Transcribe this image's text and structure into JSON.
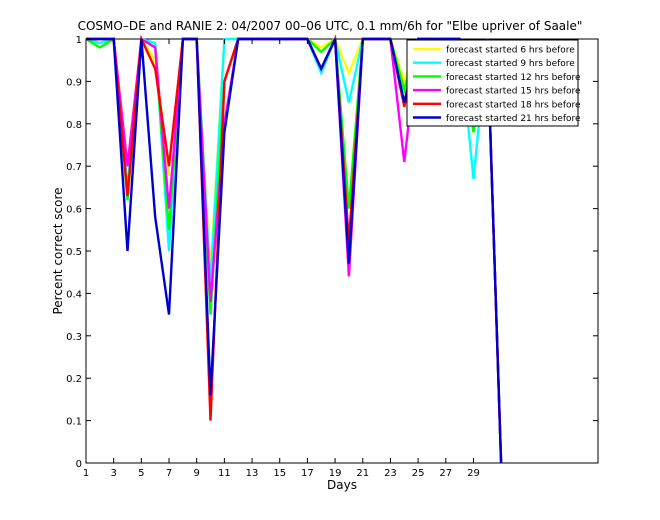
{
  "chart_data": {
    "type": "line",
    "title": "COSMO–DE and RANIE 2: 04/2007 00–06 UTC, 0.1 mm/6h for \"Elbe upriver of Saale\"",
    "xlabel": "Days",
    "ylabel": "Percent correct score",
    "xlim": [
      1,
      38
    ],
    "ylim": [
      0,
      1
    ],
    "xticks": [
      1,
      3,
      5,
      7,
      9,
      11,
      13,
      15,
      17,
      19,
      21,
      23,
      25,
      27,
      29
    ],
    "yticks": [
      0,
      0.1,
      0.2,
      0.3,
      0.4,
      0.5,
      0.6,
      0.7,
      0.8,
      0.9,
      1
    ],
    "ytick_labels": [
      "0",
      "0.1",
      "0.2",
      "0.3",
      "0.4",
      "0.5",
      "0.6",
      "0.7",
      "0.8",
      "0.9",
      "1"
    ],
    "legend_position": "top-right",
    "series": [
      {
        "name": "forecast started 6 hrs before",
        "color": "#ffff00",
        "points": [
          [
            1,
            1
          ],
          [
            2,
            0.99
          ],
          [
            3,
            1
          ],
          [
            4,
            0.7
          ],
          [
            5,
            1
          ],
          [
            6,
            0.95
          ],
          [
            7,
            0.68
          ],
          [
            7.5,
            0.68
          ],
          [
            8,
            1
          ],
          [
            9,
            1
          ],
          [
            10,
            0.45
          ],
          [
            11,
            1
          ],
          [
            12,
            1
          ],
          [
            13,
            1
          ],
          [
            17,
            1
          ],
          [
            18,
            0.98
          ],
          [
            19,
            1
          ],
          [
            20,
            0.92
          ],
          [
            21,
            1
          ],
          [
            23,
            1
          ],
          [
            24,
            0.9
          ],
          [
            25,
            1
          ],
          [
            28,
            1
          ],
          [
            29,
            0.92
          ],
          [
            30,
            1
          ],
          [
            31,
            0
          ]
        ]
      },
      {
        "name": "forecast started 9 hrs before",
        "color": "#00ffff",
        "points": [
          [
            1,
            1
          ],
          [
            2,
            0.99
          ],
          [
            3,
            1
          ],
          [
            4,
            0.65
          ],
          [
            5,
            1
          ],
          [
            6,
            0.99
          ],
          [
            7,
            0.5
          ],
          [
            8,
            1
          ],
          [
            9,
            1
          ],
          [
            10,
            0.42
          ],
          [
            11,
            1
          ],
          [
            12,
            1
          ],
          [
            13,
            1
          ],
          [
            17,
            1
          ],
          [
            18,
            0.92
          ],
          [
            19,
            1
          ],
          [
            20,
            0.85
          ],
          [
            21,
            1
          ],
          [
            23,
            1
          ],
          [
            24,
            0.88
          ],
          [
            25,
            1
          ],
          [
            28,
            1
          ],
          [
            29,
            0.67
          ],
          [
            30,
            1
          ],
          [
            31,
            0
          ]
        ]
      },
      {
        "name": "forecast started 12 hrs before",
        "color": "#00ff00",
        "points": [
          [
            1,
            1
          ],
          [
            2,
            0.98
          ],
          [
            3,
            1
          ],
          [
            4,
            0.62
          ],
          [
            5,
            1
          ],
          [
            6,
            0.98
          ],
          [
            7,
            0.55
          ],
          [
            8,
            1
          ],
          [
            9,
            1
          ],
          [
            10,
            0.35
          ],
          [
            11,
            0.9
          ],
          [
            12,
            1
          ],
          [
            13,
            1
          ],
          [
            17,
            1
          ],
          [
            18,
            0.97
          ],
          [
            19,
            1
          ],
          [
            20,
            0.6
          ],
          [
            21,
            1
          ],
          [
            23,
            1
          ],
          [
            24,
            0.88
          ],
          [
            25,
            1
          ],
          [
            28,
            1
          ],
          [
            29,
            0.78
          ],
          [
            30,
            1
          ],
          [
            31,
            0
          ]
        ]
      },
      {
        "name": "forecast started 15 hrs before",
        "color": "#ff00ff",
        "points": [
          [
            1,
            1
          ],
          [
            2,
            1
          ],
          [
            3,
            1
          ],
          [
            4,
            0.7
          ],
          [
            5,
            1
          ],
          [
            6,
            0.98
          ],
          [
            7,
            0.6
          ],
          [
            8,
            1
          ],
          [
            9,
            1
          ],
          [
            10,
            0.38
          ],
          [
            11,
            0.8
          ],
          [
            12,
            1
          ],
          [
            13,
            1
          ],
          [
            17,
            1
          ],
          [
            18,
            0.93
          ],
          [
            19,
            1
          ],
          [
            20,
            0.44
          ],
          [
            21,
            1
          ],
          [
            23,
            1
          ],
          [
            24,
            0.71
          ],
          [
            25,
            1
          ],
          [
            28,
            1
          ],
          [
            29,
            0.93
          ],
          [
            30,
            1
          ],
          [
            31,
            0
          ]
        ]
      },
      {
        "name": "forecast started 18 hrs before",
        "color": "#ff0000",
        "points": [
          [
            1,
            1
          ],
          [
            2,
            1
          ],
          [
            3,
            1
          ],
          [
            4,
            0.63
          ],
          [
            5,
            1
          ],
          [
            6,
            0.93
          ],
          [
            7,
            0.7
          ],
          [
            8,
            1
          ],
          [
            9,
            1
          ],
          [
            10,
            0.1
          ],
          [
            11,
            0.9
          ],
          [
            12,
            1
          ],
          [
            13,
            1
          ],
          [
            17,
            1
          ],
          [
            18,
            0.93
          ],
          [
            19,
            1
          ],
          [
            20,
            0.52
          ],
          [
            21,
            1
          ],
          [
            23,
            1
          ],
          [
            24,
            0.84
          ],
          [
            25,
            1
          ],
          [
            28,
            1
          ],
          [
            29,
            0.93
          ],
          [
            30,
            1
          ],
          [
            31,
            0
          ]
        ]
      },
      {
        "name": "forecast started 21 hrs before",
        "color": "#0000cd",
        "points": [
          [
            1,
            1
          ],
          [
            2,
            1
          ],
          [
            3,
            1
          ],
          [
            4,
            0.5
          ],
          [
            5,
            1
          ],
          [
            6,
            0.58
          ],
          [
            7,
            0.35
          ],
          [
            8,
            1
          ],
          [
            9,
            1
          ],
          [
            10,
            0.16
          ],
          [
            11,
            0.78
          ],
          [
            12,
            1
          ],
          [
            13,
            1
          ],
          [
            17,
            1
          ],
          [
            18,
            0.93
          ],
          [
            19,
            1
          ],
          [
            20,
            0.47
          ],
          [
            21,
            1
          ],
          [
            23,
            1
          ],
          [
            24,
            0.85
          ],
          [
            25,
            1
          ],
          [
            28,
            1
          ],
          [
            29,
            0.93
          ],
          [
            30,
            1
          ],
          [
            31,
            0
          ]
        ]
      }
    ]
  }
}
